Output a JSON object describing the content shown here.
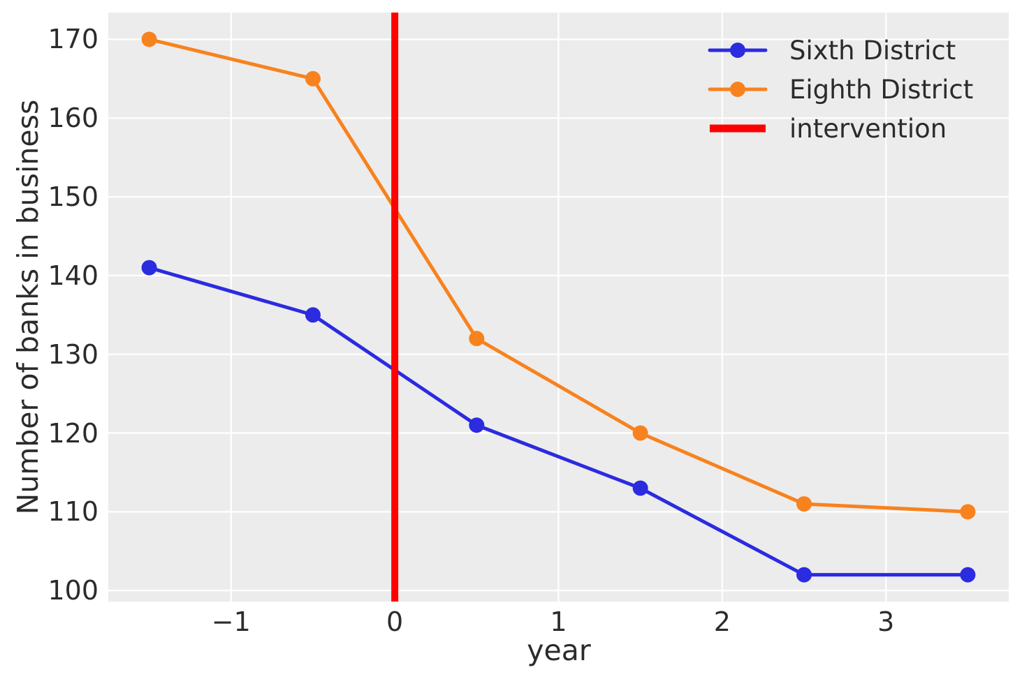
{
  "chart_data": {
    "type": "line",
    "xlabel": "year",
    "ylabel": "Number of banks in business",
    "x": [
      -1.5,
      -0.5,
      0.5,
      1.5,
      2.5,
      3.5
    ],
    "series": [
      {
        "name": "Sixth District",
        "color": "#2b2be0",
        "values": [
          141,
          135,
          121,
          113,
          102,
          102
        ]
      },
      {
        "name": "Eighth District",
        "color": "#f8821e",
        "values": [
          170,
          165,
          132,
          120,
          111,
          110
        ]
      }
    ],
    "intervention_line": {
      "label": "intervention",
      "x": 0,
      "color": "#ff0000"
    },
    "xticks": {
      "values": [
        -1,
        0,
        1,
        2,
        3
      ],
      "labels": [
        "−1",
        "0",
        "1",
        "2",
        "3"
      ]
    },
    "yticks": [
      100,
      110,
      120,
      130,
      140,
      150,
      160,
      170
    ],
    "xlim": [
      -1.75,
      3.75
    ],
    "ylim": [
      98.6,
      173.4
    ],
    "grid": true,
    "legend_position": "upper right",
    "plot_background": "#ececec",
    "grid_color": "#ffffff",
    "text_color": "#2b2b2b"
  }
}
